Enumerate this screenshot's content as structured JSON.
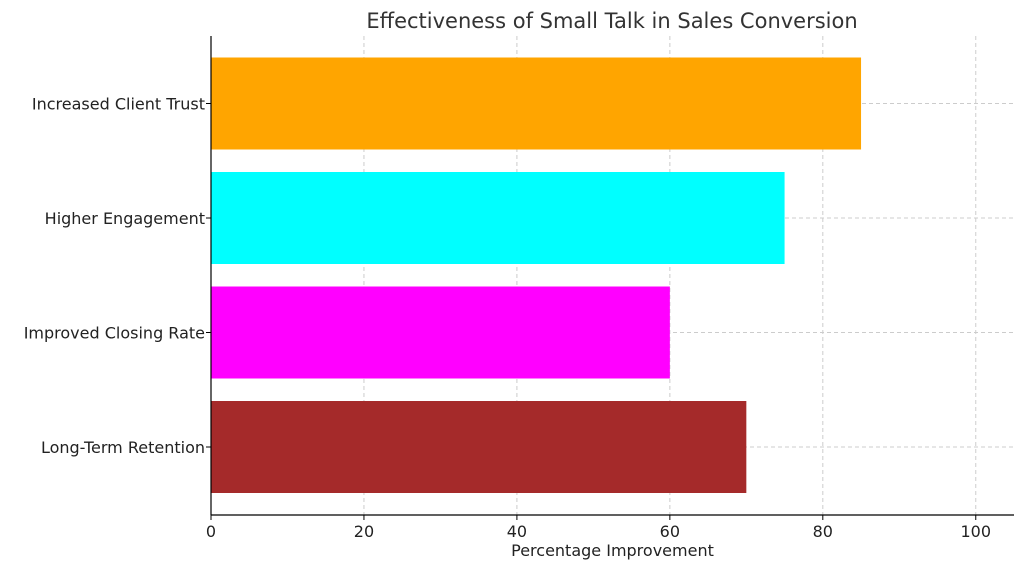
{
  "chart_data": {
    "type": "bar",
    "orientation": "horizontal",
    "title": "Effectiveness of Small Talk in Sales Conversion",
    "xlabel": "Percentage Improvement",
    "ylabel": "",
    "categories": [
      "Long-Term Retention",
      "Improved Closing Rate",
      "Higher Engagement",
      "Increased Client Trust"
    ],
    "values": [
      70,
      60,
      75,
      85
    ],
    "colors": [
      "#a52a2a",
      "#ff00ff",
      "#00ffff",
      "#ffa500"
    ],
    "xlim": [
      0,
      105
    ],
    "xticks": [
      0,
      20,
      40,
      60,
      80,
      100
    ],
    "xtick_labels": [
      "0",
      "20",
      "40",
      "60",
      "80",
      "100"
    ],
    "grid": true
  }
}
